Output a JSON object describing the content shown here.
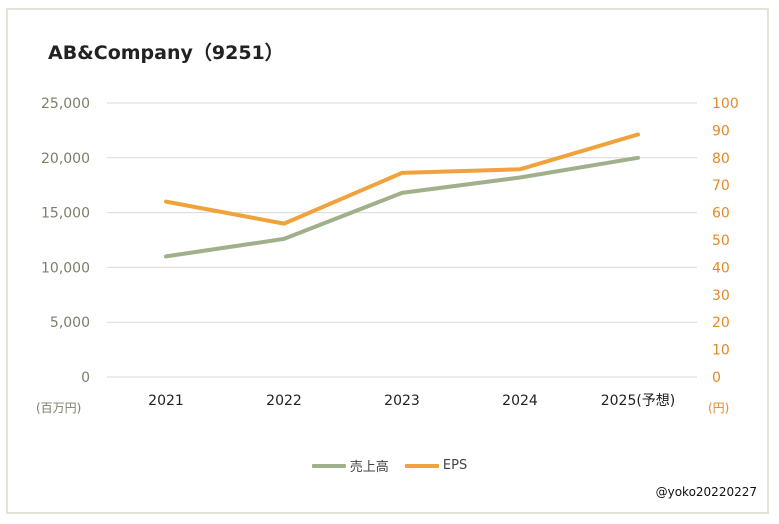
{
  "title": "AB&Company（9251）",
  "credit": "@yoko20220227",
  "colors": {
    "sales": "#a0b08a",
    "eps": "#f0a23c",
    "axis_left": "#7a7f6a",
    "axis_right": "#e08a2a",
    "grid": "#d9d9d9"
  },
  "chart_data": {
    "type": "line",
    "categories": [
      "2021",
      "2022",
      "2023",
      "2024",
      "2025(予想)"
    ],
    "series": [
      {
        "name": "売上高",
        "axis": "left",
        "values": [
          11000,
          12600,
          16800,
          18200,
          20000
        ]
      },
      {
        "name": "EPS",
        "axis": "right",
        "values": [
          64,
          56,
          74.5,
          75.8,
          88.5
        ]
      }
    ],
    "y_left": {
      "ylim": [
        0,
        25000
      ],
      "ticks": [
        "0",
        "5,000",
        "10,000",
        "15,000",
        "20,000",
        "25,000"
      ],
      "unit": "(百万円)"
    },
    "y_right": {
      "ylim": [
        0,
        100
      ],
      "ticks": [
        "0",
        "10",
        "20",
        "30",
        "40",
        "50",
        "60",
        "70",
        "80",
        "90",
        "100"
      ],
      "unit": "(円)"
    },
    "grid": true,
    "legend": "bottom"
  }
}
